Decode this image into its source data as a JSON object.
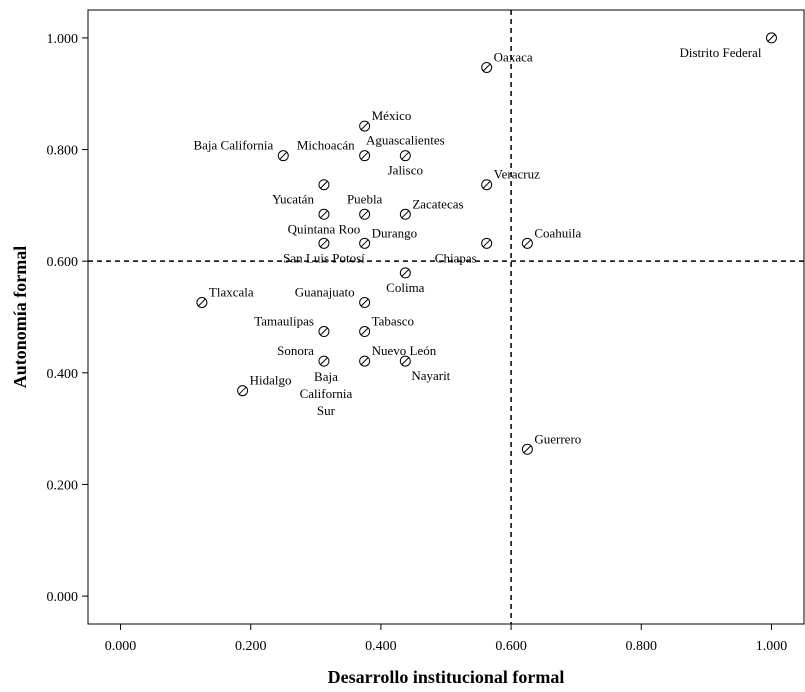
{
  "chart_data": {
    "type": "scatter",
    "xlabel": "Desarrollo institucional formal",
    "ylabel": "Autonomía formal",
    "xlim": [
      -0.05,
      1.05
    ],
    "ylim": [
      -0.05,
      1.05
    ],
    "xticks": [
      "0.000",
      "0.200",
      "0.400",
      "0.600",
      "0.800",
      "1.000"
    ],
    "yticks": [
      "0.000",
      "0.200",
      "0.400",
      "0.600",
      "0.800",
      "1.000"
    ],
    "reference_lines": {
      "x": 0.6,
      "y": 0.6
    },
    "grid": false,
    "points": [
      {
        "label": "Distrito Federal",
        "x": 1.0,
        "y": 1.0,
        "pos": "left-below"
      },
      {
        "label": "Oaxaca",
        "x": 0.5625,
        "y": 0.947,
        "pos": "right-above"
      },
      {
        "label": "México",
        "x": 0.375,
        "y": 0.842,
        "pos": "right-above"
      },
      {
        "label": "Baja California",
        "x": 0.25,
        "y": 0.789,
        "pos": "left-above"
      },
      {
        "label": "Michoacán",
        "x": 0.375,
        "y": 0.789,
        "pos": "left-above"
      },
      {
        "label": "Aguascalientes",
        "x": 0.4375,
        "y": 0.789,
        "pos": "center-above"
      },
      {
        "label": "Jalisco",
        "x": 0.4375,
        "y": 0.789,
        "pos": "center-below"
      },
      {
        "label": "Veracruz",
        "x": 0.5625,
        "y": 0.737,
        "pos": "right-above"
      },
      {
        "label": "Yucatán",
        "x": 0.3125,
        "y": 0.737,
        "pos": "left-below"
      },
      {
        "label": "Puebla",
        "x": 0.375,
        "y": 0.684,
        "pos": "center-above"
      },
      {
        "label": "Zacatecas",
        "x": 0.4375,
        "y": 0.684,
        "pos": "right-above"
      },
      {
        "label": "Quintana Roo",
        "x": 0.3125,
        "y": 0.684,
        "pos": "center-below"
      },
      {
        "label": "Durango",
        "x": 0.375,
        "y": 0.632,
        "pos": "right-above"
      },
      {
        "label": "Chiapas",
        "x": 0.5625,
        "y": 0.632,
        "pos": "left-below"
      },
      {
        "label": "Coahuila",
        "x": 0.625,
        "y": 0.632,
        "pos": "right-above"
      },
      {
        "label": "San Luis Potosí",
        "x": 0.3125,
        "y": 0.632,
        "pos": "center-below"
      },
      {
        "label": "Colima",
        "x": 0.4375,
        "y": 0.579,
        "pos": "center-below"
      },
      {
        "label": "Tlaxcala",
        "x": 0.125,
        "y": 0.526,
        "pos": "right-above"
      },
      {
        "label": "Guanajuato",
        "x": 0.375,
        "y": 0.526,
        "pos": "left-above"
      },
      {
        "label": "Tamaulipas",
        "x": 0.3125,
        "y": 0.474,
        "pos": "left-above"
      },
      {
        "label": "Tabasco",
        "x": 0.375,
        "y": 0.474,
        "pos": "right-above"
      },
      {
        "label": "Sonora",
        "x": 0.3125,
        "y": 0.421,
        "pos": "left-above"
      },
      {
        "label": "Nuevo León",
        "x": 0.375,
        "y": 0.421,
        "pos": "right-above"
      },
      {
        "label": "Nayarit",
        "x": 0.4375,
        "y": 0.421,
        "pos": "right-below"
      },
      {
        "label": "Hidalgo",
        "x": 0.1875,
        "y": 0.368,
        "pos": "right-above"
      },
      {
        "label": "Baja California Sur",
        "x": 0.3125,
        "y": 0.421,
        "pos": "stack-below",
        "lines": [
          "Baja",
          "California",
          "Sur"
        ]
      },
      {
        "label": "Guerrero",
        "x": 0.625,
        "y": 0.263,
        "pos": "right-above"
      }
    ]
  }
}
